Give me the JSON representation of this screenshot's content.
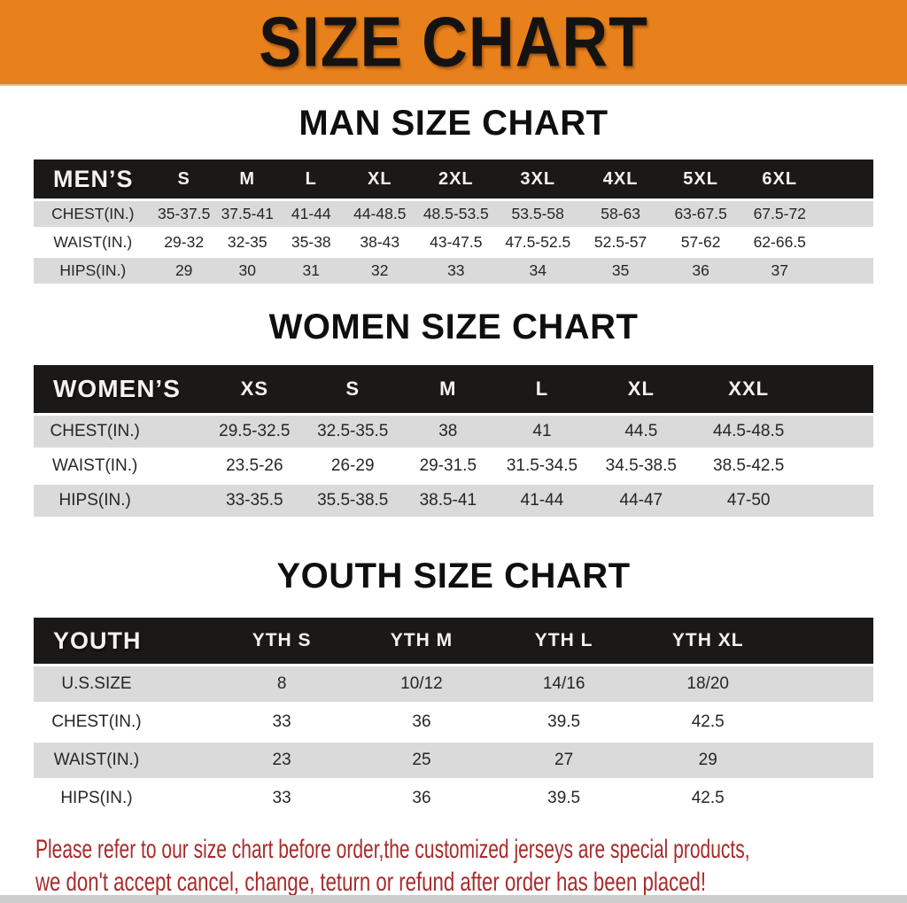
{
  "banner": {
    "title": "SIZE CHART",
    "bg_color": "#E8811C",
    "text_color": "#151311"
  },
  "sections": [
    {
      "heading": "MAN SIZE CHART",
      "table": {
        "label": "MEN’S",
        "columns": [
          "S",
          "M",
          "L",
          "XL",
          "2XL",
          "3XL",
          "4XL",
          "5XL",
          "6XL"
        ],
        "rows": [
          {
            "label": "CHEST(IN.)",
            "values": [
              "35-37.5",
              "37.5-41",
              "41-44",
              "44-48.5",
              "48.5-53.5",
              "53.5-58",
              "58-63",
              "63-67.5",
              "67.5-72"
            ]
          },
          {
            "label": "WAIST(IN.)",
            "values": [
              "29-32",
              "32-35",
              "35-38",
              "38-43",
              "43-47.5",
              "47.5-52.5",
              "52.5-57",
              "57-62",
              "62-66.5"
            ]
          },
          {
            "label": "HIPS(IN.)",
            "values": [
              "29",
              "30",
              "31",
              "32",
              "33",
              "34",
              "35",
              "36",
              "37"
            ]
          }
        ]
      }
    },
    {
      "heading": "WOMEN SIZE CHART",
      "table": {
        "label": "WOMEN’S",
        "columns": [
          "XS",
          "S",
          "M",
          "L",
          "XL",
          "XXL"
        ],
        "rows": [
          {
            "label": "CHEST(IN.)",
            "values": [
              "29.5-32.5",
              "32.5-35.5",
              "38",
              "41",
              "44.5",
              "44.5-48.5"
            ]
          },
          {
            "label": "WAIST(IN.)",
            "values": [
              "23.5-26",
              "26-29",
              "29-31.5",
              "31.5-34.5",
              "34.5-38.5",
              "38.5-42.5"
            ]
          },
          {
            "label": "HIPS(IN.)",
            "values": [
              "33-35.5",
              "35.5-38.5",
              "38.5-41",
              "41-44",
              "44-47",
              "47-50"
            ]
          }
        ]
      }
    },
    {
      "heading": "YOUTH SIZE CHART",
      "table": {
        "label": "YOUTH",
        "columns": [
          "YTH S",
          "YTH M",
          "YTH L",
          "YTH XL"
        ],
        "rows": [
          {
            "label": "U.S.SIZE",
            "values": [
              "8",
              "10/12",
              "14/16",
              "18/20"
            ]
          },
          {
            "label": "CHEST(IN.)",
            "values": [
              "33",
              "36",
              "39.5",
              "42.5"
            ]
          },
          {
            "label": "WAIST(IN.)",
            "values": [
              "23",
              "25",
              "27",
              "29"
            ]
          },
          {
            "label": "HIPS(IN.)",
            "values": [
              "33",
              "36",
              "39.5",
              "42.5"
            ]
          }
        ]
      }
    }
  ],
  "footer": {
    "line1": "Please refer to our size chart before order,the customized jerseys are special products,",
    "line2": "we don't accept cancel, change, teturn or refund after order has been placed!",
    "text_color": "#A82B2B"
  },
  "colors": {
    "banner_bg": "#E8811C",
    "header_bar_bg": "#1B1917",
    "header_bar_text": "#F4F2ED",
    "row_gray": "#DADADA",
    "row_white": "#FFFFFF",
    "note_red": "#A82B2B"
  }
}
